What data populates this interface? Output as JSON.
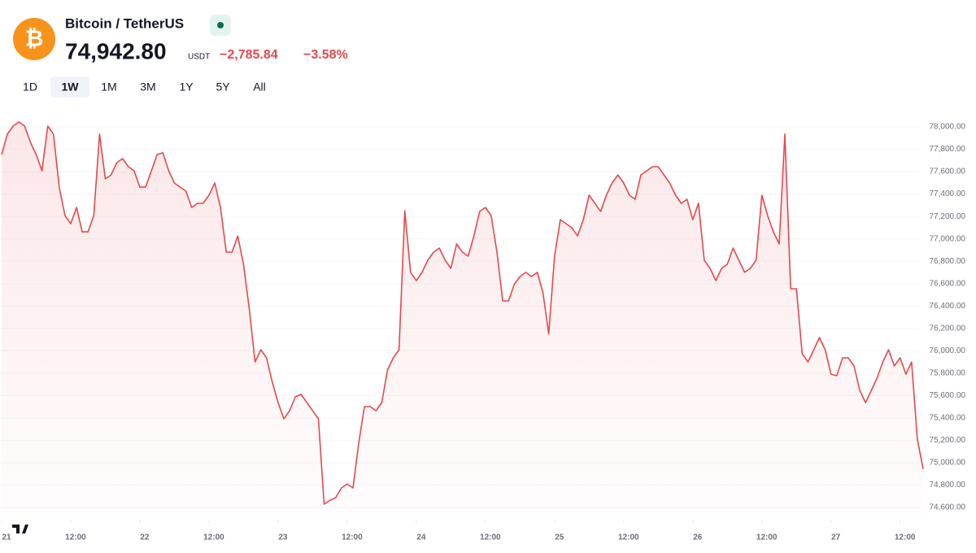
{
  "header": {
    "title": "Bitcoin / TetherUS",
    "price": "74,942.80",
    "unit": "USDT",
    "change": "−2,785.84",
    "change_percent": "−3.58%"
  },
  "tabs": [
    "1D",
    "1W",
    "1M",
    "3M",
    "1Y",
    "5Y",
    "All"
  ],
  "selected_tab": 1,
  "chart_data": {
    "type": "line",
    "color": "#e5484d",
    "grid": true,
    "xlim": [
      0,
      160
    ],
    "xticks": [
      {
        "value": 0,
        "label": "21"
      },
      {
        "value": 12,
        "label": "12:00"
      },
      {
        "value": 24,
        "label": "22"
      },
      {
        "value": 36,
        "label": "12:00"
      },
      {
        "value": 48,
        "label": "23"
      },
      {
        "value": 60,
        "label": "12:00"
      },
      {
        "value": 72,
        "label": "24"
      },
      {
        "value": 84,
        "label": "12:00"
      },
      {
        "value": 96,
        "label": "25"
      },
      {
        "value": 108,
        "label": "12:00"
      },
      {
        "value": 120,
        "label": "26"
      },
      {
        "value": 132,
        "label": "12:00"
      },
      {
        "value": 144,
        "label": "27"
      },
      {
        "value": 156,
        "label": "12:00"
      }
    ],
    "ylim": [
      74600,
      78000
    ],
    "yticks": [
      {
        "value": 74600,
        "label": "74,600.00"
      },
      {
        "value": 74800,
        "label": "74,800.00"
      },
      {
        "value": 75000,
        "label": "75,000.00"
      },
      {
        "value": 75200,
        "label": "75,200.00"
      },
      {
        "value": 75400,
        "label": "75,400.00"
      },
      {
        "value": 75600,
        "label": "75,600.00"
      },
      {
        "value": 75800,
        "label": "75,800.00"
      },
      {
        "value": 76000,
        "label": "76,000.00"
      },
      {
        "value": 76200,
        "label": "76,200.00"
      },
      {
        "value": 76400,
        "label": "76,400.00"
      },
      {
        "value": 76600,
        "label": "76,600.00"
      },
      {
        "value": 76800,
        "label": "76,800.00"
      },
      {
        "value": 77000,
        "label": "77,000.00"
      },
      {
        "value": 77200,
        "label": "77,200.00"
      },
      {
        "value": 77400,
        "label": "77,400.00"
      },
      {
        "value": 77600,
        "label": "77,600.00"
      },
      {
        "value": 77800,
        "label": "77,800.00"
      },
      {
        "value": 78000,
        "label": "78,000.00"
      }
    ],
    "values": [
      77753,
      77935,
      78007,
      78044,
      78007,
      77862,
      77753,
      77608,
      78007,
      77935,
      77462,
      77208,
      77135,
      77280,
      77062,
      77062,
      77208,
      77935,
      77535,
      77571,
      77680,
      77717,
      77644,
      77608,
      77462,
      77462,
      77608,
      77753,
      77768,
      77608,
      77499,
      77462,
      77426,
      77280,
      77317,
      77317,
      77390,
      77499,
      77280,
      76881,
      76881,
      77026,
      76772,
      76373,
      75900,
      76009,
      75936,
      75719,
      75537,
      75392,
      75464,
      75588,
      75610,
      75537,
      75464,
      75392,
      74629,
      74665,
      74687,
      74774,
      74810,
      74774,
      75174,
      75501,
      75501,
      75464,
      75537,
      75828,
      75936,
      76009,
      77250,
      76700,
      76627,
      76700,
      76809,
      76881,
      76917,
      76809,
      76736,
      76954,
      76881,
      76845,
      77026,
      77244,
      77280,
      77208,
      76881,
      76445,
      76445,
      76591,
      76663,
      76700,
      76663,
      76700,
      76518,
      76150,
      76845,
      77171,
      77135,
      77099,
      77026,
      77171,
      77390,
      77317,
      77244,
      77390,
      77499,
      77571,
      77499,
      77390,
      77353,
      77571,
      77608,
      77644,
      77644,
      77571,
      77499,
      77390,
      77317,
      77353,
      77171,
      77317,
      76809,
      76736,
      76627,
      76736,
      76772,
      76917,
      76809,
      76700,
      76736,
      76809,
      77390,
      77208,
      77062,
      76954,
      77935,
      76554,
      76554,
      75973,
      75900,
      76009,
      76118,
      76009,
      75791,
      75777,
      75936,
      75936,
      75864,
      75646,
      75537,
      75646,
      75755,
      75900,
      76009,
      75864,
      75936,
      75791,
      75900,
      75210,
      74942.8
    ]
  }
}
